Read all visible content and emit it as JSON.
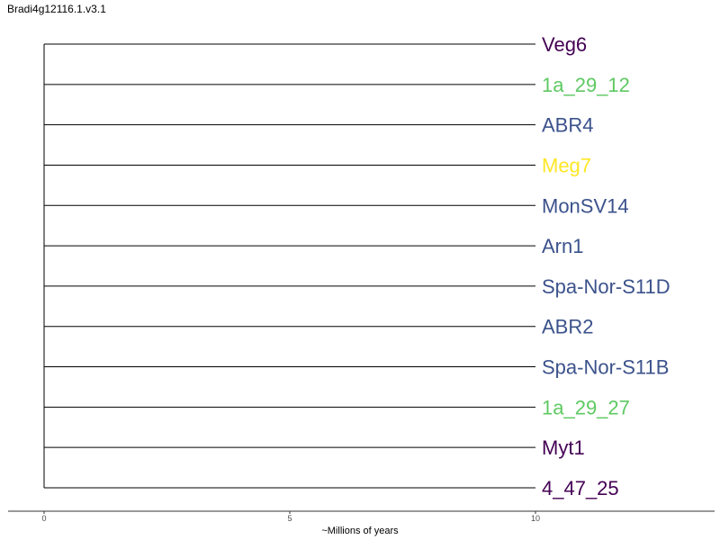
{
  "title": "Bradi4g12116.1.v3.1",
  "chart_data": {
    "type": "tree",
    "title": "Bradi4g12116.1.v3.1",
    "xlabel": "~Millions of years",
    "xlim": [
      0,
      10
    ],
    "ticks": [
      0,
      5,
      10
    ],
    "tick_labels": [
      "0",
      "5",
      "10"
    ],
    "root_x": 0,
    "tips": [
      {
        "label": "Veg6",
        "x": 10,
        "color": "#440154"
      },
      {
        "label": "1a_29_12",
        "x": 10,
        "color": "#5ec962"
      },
      {
        "label": "ABR4",
        "x": 10,
        "color": "#3b528b"
      },
      {
        "label": "Meg7",
        "x": 10,
        "color": "#fde725"
      },
      {
        "label": "MonSV14",
        "x": 10,
        "color": "#3b528b"
      },
      {
        "label": "Arn1",
        "x": 10,
        "color": "#3b528b"
      },
      {
        "label": "Spa-Nor-S11D",
        "x": 10,
        "color": "#3b528b"
      },
      {
        "label": "ABR2",
        "x": 10,
        "color": "#3b528b"
      },
      {
        "label": "Spa-Nor-S11B",
        "x": 10,
        "color": "#3b528b"
      },
      {
        "label": "1a_29_27",
        "x": 10,
        "color": "#5ec962"
      },
      {
        "label": "Myt1",
        "x": 10,
        "color": "#440154"
      },
      {
        "label": "4_47_25",
        "x": 10,
        "color": "#440154"
      }
    ]
  }
}
